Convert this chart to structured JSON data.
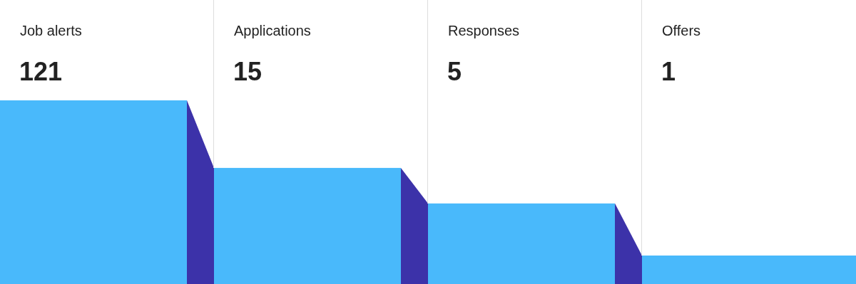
{
  "chart_data": {
    "type": "other",
    "categories": [
      "Job alerts",
      "Applications",
      "Responses",
      "Offers"
    ],
    "values": [
      121,
      15,
      5,
      1
    ],
    "color": "#49b9fb",
    "data_labels": true
  }
}
